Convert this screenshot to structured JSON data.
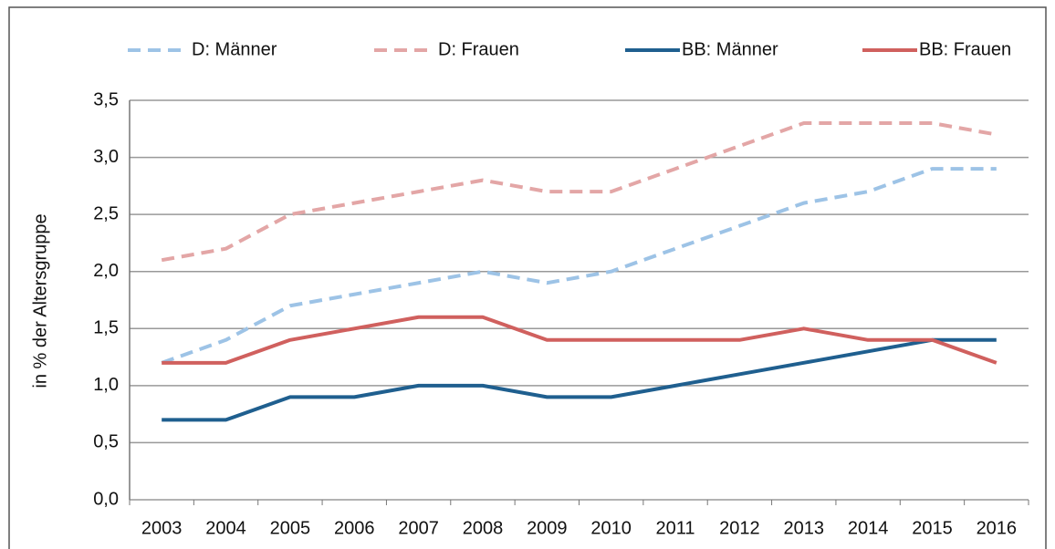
{
  "chart_data": {
    "type": "line",
    "categories": [
      "2003",
      "2004",
      "2005",
      "2006",
      "2007",
      "2008",
      "2009",
      "2010",
      "2011",
      "2012",
      "2013",
      "2014",
      "2015",
      "2016"
    ],
    "ylabel": "in % der Altersgruppe",
    "ylim": [
      0,
      3.5
    ],
    "yticks": [
      {
        "value": 0,
        "label": "0,0"
      },
      {
        "value": 0.5,
        "label": "0,5"
      },
      {
        "value": 1,
        "label": "1,0"
      },
      {
        "value": 1.5,
        "label": "1,5"
      },
      {
        "value": 2,
        "label": "2,0"
      },
      {
        "value": 2.5,
        "label": "2,5"
      },
      {
        "value": 3,
        "label": "3,0"
      },
      {
        "value": 3.5,
        "label": "3,5"
      }
    ],
    "grid": true,
    "legend": "top",
    "series": [
      {
        "name": "D: Männer",
        "color": "#9dc3e6",
        "dashed": true,
        "values": [
          1.2,
          1.4,
          1.7,
          1.8,
          1.9,
          2.0,
          1.9,
          2.0,
          2.2,
          2.4,
          2.6,
          2.7,
          2.9,
          2.9
        ]
      },
      {
        "name": "D: Frauen",
        "color": "#e3a6a6",
        "dashed": true,
        "values": [
          2.1,
          2.2,
          2.5,
          2.6,
          2.7,
          2.8,
          2.7,
          2.7,
          2.9,
          3.1,
          3.3,
          3.3,
          3.3,
          3.2
        ]
      },
      {
        "name": "BB: Männer",
        "color": "#1f5f8f",
        "dashed": false,
        "values": [
          0.7,
          0.7,
          0.9,
          0.9,
          1.0,
          1.0,
          0.9,
          0.9,
          1.0,
          1.1,
          1.2,
          1.3,
          1.4,
          1.4
        ]
      },
      {
        "name": "BB: Frauen",
        "color": "#d0605e",
        "dashed": false,
        "values": [
          1.2,
          1.2,
          1.4,
          1.5,
          1.6,
          1.6,
          1.4,
          1.4,
          1.4,
          1.4,
          1.5,
          1.4,
          1.4,
          1.2
        ]
      }
    ]
  }
}
